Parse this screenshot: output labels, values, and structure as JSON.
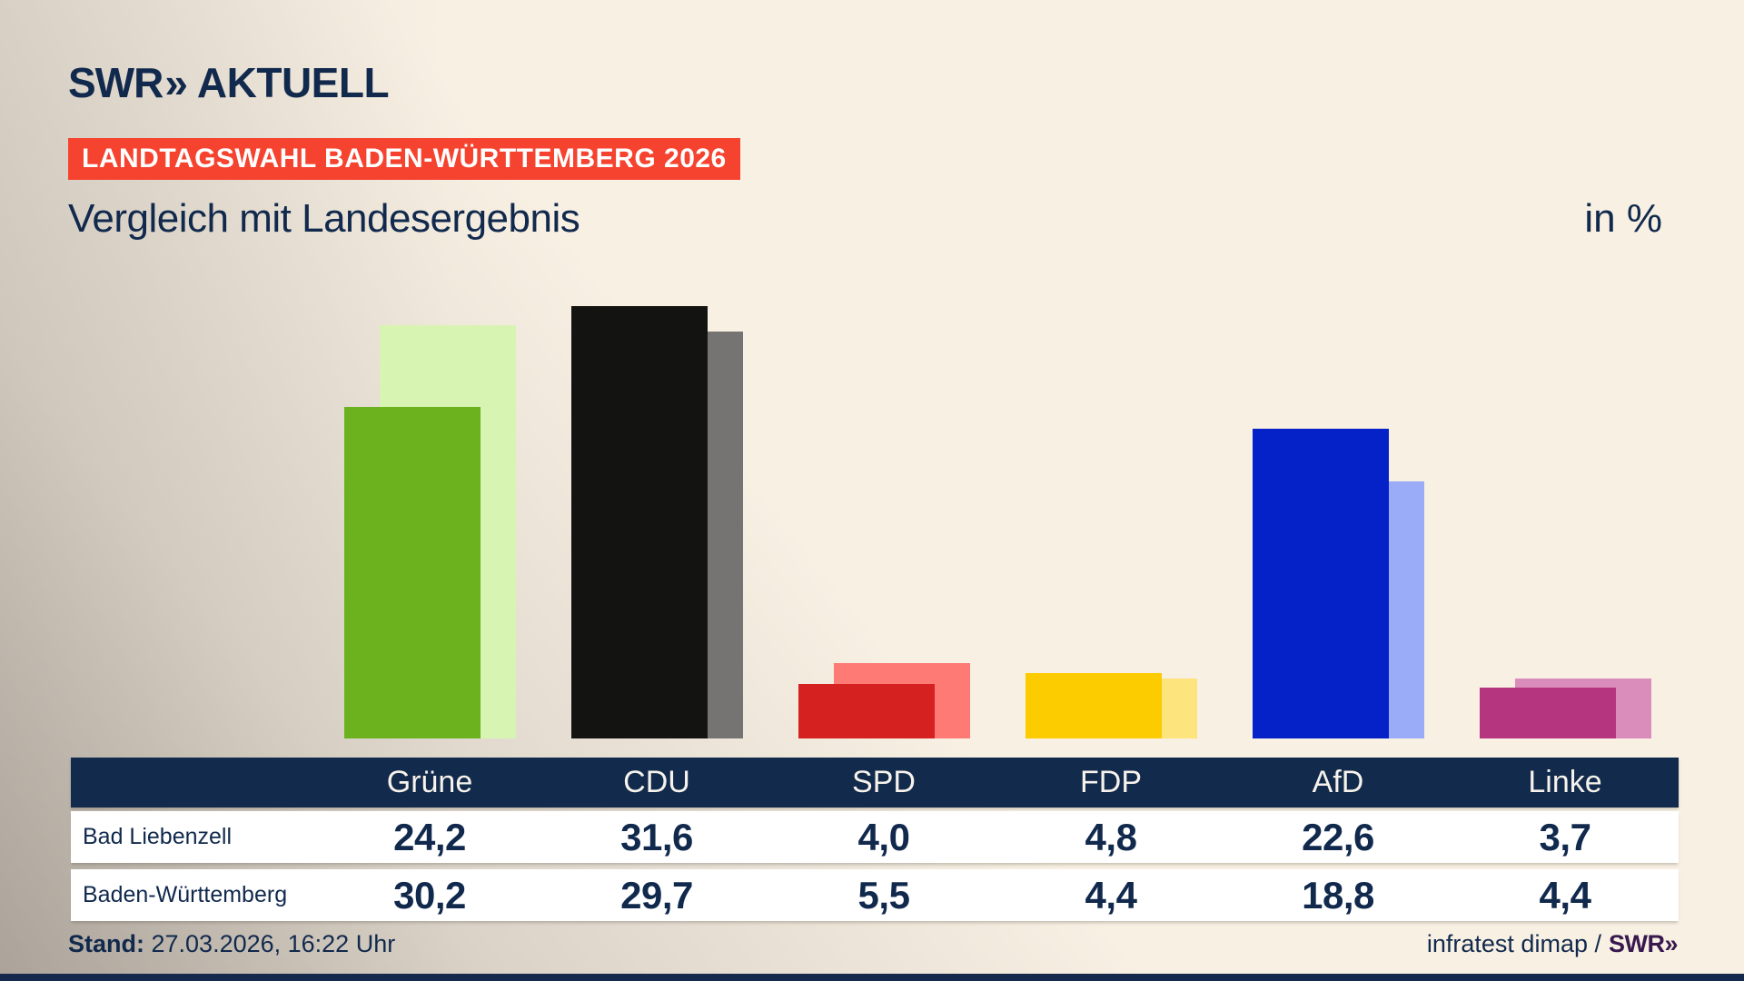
{
  "brand": {
    "swr": "SWR",
    "chevrons": "»",
    "aktuell": "AKTUELL"
  },
  "badge": {
    "label": "LANDTAGSWAHL BADEN-WÜRTTEMBERG 2026",
    "bg": "#f5432f"
  },
  "title": "Vergleich mit Landesergebnis",
  "unit_label": "in %",
  "chart_data": {
    "type": "bar",
    "title": "Vergleich mit Landesergebnis",
    "xlabel": "",
    "ylabel": "in %",
    "ylim": [
      0,
      54
    ],
    "grid": false,
    "legend_position": "none",
    "categories": [
      "Grüne",
      "CDU",
      "SPD",
      "FDP",
      "AfD",
      "Linke"
    ],
    "series": [
      {
        "name": "Bad Liebenzell",
        "values": [
          24.2,
          31.6,
          4.0,
          4.8,
          22.6,
          3.7
        ]
      },
      {
        "name": "Baden-Württemberg",
        "values": [
          30.2,
          29.7,
          5.5,
          4.4,
          18.8,
          4.4
        ]
      }
    ],
    "colors": {
      "front": [
        "#6cb21e",
        "#131312",
        "#d52221",
        "#fdcc00",
        "#0521c8",
        "#b5357f"
      ],
      "back": [
        "#d7f4b2",
        "#767472",
        "#fe7b75",
        "#fde47c",
        "#9aabf8",
        "#da8cba"
      ]
    }
  },
  "table": {
    "columns": [
      "Grüne",
      "CDU",
      "SPD",
      "FDP",
      "AfD",
      "Linke"
    ],
    "row_labels": [
      "Bad Liebenzell",
      "Baden-Württemberg"
    ],
    "rows": [
      [
        "24,2",
        "31,6",
        "4,0",
        "4,8",
        "22,6",
        "3,7"
      ],
      [
        "30,2",
        "29,7",
        "5,5",
        "4,4",
        "18,8",
        "4,4"
      ]
    ]
  },
  "footer": {
    "stand_label": "Stand:",
    "stand_value": " 27.03.2026, 16:22 Uhr",
    "source_text": "infratest dimap /",
    "source_logo": "SWR»"
  }
}
